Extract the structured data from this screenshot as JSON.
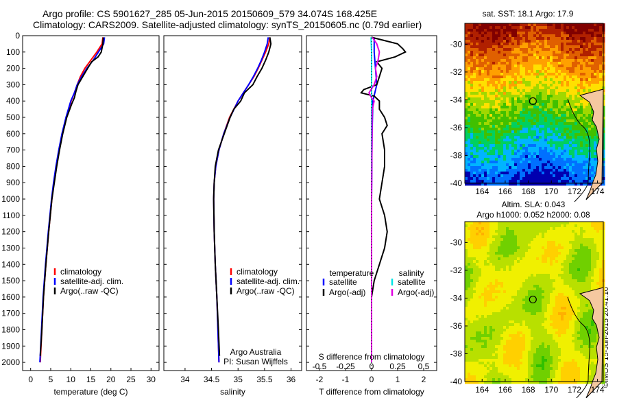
{
  "header": {
    "line1": "Argo profile: CS 5901627_285 05-Jun-2015 20150609_579 34.074S 168.425E",
    "line2": "Climatology: CARS2009. Satellite-adjusted climatology: synTS_20150605.nc (0.79d earlier)"
  },
  "credit": "©IMOS 15-Jun-2015 20:41:10",
  "chart_data": [
    {
      "id": "temperature",
      "type": "line",
      "xlabel": "temperature (deg C)",
      "ylabel": "",
      "xlim": [
        -2,
        32
      ],
      "xticks": [
        0,
        5,
        10,
        15,
        20,
        25,
        30
      ],
      "ylim": [
        2050,
        0
      ],
      "yticks": [
        0,
        100,
        200,
        300,
        400,
        500,
        600,
        700,
        800,
        900,
        1000,
        1100,
        1200,
        1300,
        1400,
        1500,
        1600,
        1700,
        1800,
        1900,
        2000
      ],
      "legend": [
        "climatology",
        "satellite-adj. clim.",
        "Argo(..raw -QC)"
      ],
      "legend_colors": [
        "#ff0000",
        "#0000ff",
        "#000000"
      ],
      "series": [
        {
          "name": "climatology",
          "color": "#ff0000",
          "depth": [
            10,
            50,
            100,
            150,
            200,
            250,
            300,
            350,
            400,
            500,
            600,
            700,
            800,
            900,
            1000,
            1200,
            1400,
            1600,
            1800,
            2000
          ],
          "values": [
            18.0,
            17.8,
            16.5,
            15.0,
            13.5,
            12.4,
            11.6,
            10.9,
            10.1,
            8.9,
            7.9,
            7.1,
            6.4,
            5.8,
            5.3,
            4.5,
            3.8,
            3.2,
            2.8,
            2.4
          ]
        },
        {
          "name": "satellite-adj. clim.",
          "color": "#0000ff",
          "depth": [
            10,
            50,
            100,
            150,
            200,
            250,
            300,
            350,
            400,
            500,
            600,
            700,
            800,
            900,
            1000,
            1200,
            1400,
            1600,
            1800,
            2000
          ],
          "values": [
            18.4,
            18.2,
            16.9,
            15.6,
            14.0,
            12.7,
            11.6,
            10.9,
            10.0,
            8.8,
            7.8,
            7.0,
            6.3,
            5.7,
            5.2,
            4.4,
            3.7,
            3.1,
            2.7,
            2.3
          ]
        },
        {
          "name": "Argo(..raw -QC)",
          "color": "#000000",
          "depth": [
            10,
            50,
            100,
            130,
            160,
            200,
            250,
            300,
            340,
            380,
            420,
            500,
            600,
            700,
            800,
            900,
            1000,
            1200,
            1400,
            1600,
            1800,
            1960
          ],
          "values": [
            18.1,
            18.0,
            17.6,
            16.8,
            15.2,
            14.2,
            13.0,
            11.8,
            11.3,
            10.9,
            10.2,
            9.0,
            8.0,
            7.2,
            6.5,
            5.9,
            5.3,
            4.5,
            3.8,
            3.2,
            2.8,
            2.4
          ]
        }
      ]
    },
    {
      "id": "salinity",
      "type": "line",
      "xlabel": "salinity",
      "ylabel": "",
      "xlim": [
        33.6,
        36.2
      ],
      "xticks": [
        34,
        34.5,
        35,
        35.5,
        36
      ],
      "ylim": [
        2050,
        0
      ],
      "legend": [
        "climatology",
        "satellite-adj. clim.",
        "Argo(..raw -QC)"
      ],
      "legend_colors": [
        "#ff0000",
        "#0000ff",
        "#000000"
      ],
      "annotation": [
        "Argo Australia",
        "PI: Susan Wijffels"
      ],
      "series": [
        {
          "name": "climatology",
          "color": "#ff0000",
          "depth": [
            10,
            50,
            100,
            150,
            200,
            250,
            300,
            350,
            400,
            500,
            600,
            700,
            800,
            900,
            1000,
            1200,
            1400,
            1600,
            1800,
            2000
          ],
          "values": [
            35.6,
            35.58,
            35.52,
            35.45,
            35.38,
            35.3,
            35.2,
            35.1,
            35.0,
            34.84,
            34.73,
            34.64,
            34.58,
            34.55,
            34.54,
            34.55,
            34.57,
            34.6,
            34.62,
            34.64
          ]
        },
        {
          "name": "satellite-adj. clim.",
          "color": "#0000ff",
          "depth": [
            10,
            50,
            100,
            150,
            200,
            250,
            300,
            350,
            400,
            500,
            600,
            700,
            800,
            900,
            1000,
            1200,
            1400,
            1600,
            1800,
            2000
          ],
          "values": [
            35.57,
            35.55,
            35.5,
            35.44,
            35.37,
            35.29,
            35.2,
            35.1,
            35.0,
            34.85,
            34.73,
            34.64,
            34.58,
            34.55,
            34.54,
            34.55,
            34.57,
            34.6,
            34.62,
            34.64
          ]
        },
        {
          "name": "Argo(..raw -QC)",
          "color": "#000000",
          "depth": [
            10,
            50,
            100,
            150,
            200,
            250,
            300,
            350,
            400,
            450,
            500,
            600,
            700,
            800,
            900,
            1000,
            1200,
            1400,
            1600,
            1800,
            1960
          ],
          "values": [
            35.6,
            35.62,
            35.58,
            35.52,
            35.45,
            35.36,
            35.28,
            35.12,
            35.05,
            34.92,
            34.85,
            34.74,
            34.63,
            34.57,
            34.55,
            34.54,
            34.55,
            34.57,
            34.6,
            34.63,
            34.65
          ]
        }
      ]
    },
    {
      "id": "difference",
      "type": "line",
      "xlabel": "T difference from climatology",
      "toplabel": "S difference from climatology",
      "xlim": [
        -2.5,
        2.5
      ],
      "xticks": [
        -2,
        -1,
        0,
        1,
        2
      ],
      "s_ticks": [
        "-0.5",
        "-0.25",
        "0",
        "0.25",
        "0.5"
      ],
      "ylim": [
        2050,
        0
      ],
      "legend_titles": [
        "temperature",
        "salinity"
      ],
      "legend": [
        "satellite",
        "Argo(-adj)",
        "satellite",
        "Argo(-adj)"
      ],
      "legend_colors": [
        "#0000ff",
        "#000000",
        "#00e5e5",
        "#e000e0"
      ],
      "series": [
        {
          "name": "satellite",
          "color": "#0000ff",
          "depth": [
            10,
            100,
            200,
            300,
            400,
            600,
            1000,
            1500,
            2000
          ],
          "values": [
            0.1,
            0.1,
            0.15,
            0.2,
            0.05,
            0.02,
            0.0,
            0.0,
            0.0
          ]
        },
        {
          "name": "Argo(-adj)",
          "color": "#000000",
          "depth": [
            10,
            30,
            50,
            80,
            100,
            130,
            160,
            200,
            250,
            300,
            330,
            350,
            370,
            400,
            450,
            500,
            550,
            600,
            700,
            800,
            900,
            1000,
            1100,
            1200,
            1300,
            1400,
            1500,
            1600,
            1700,
            1800,
            1900,
            1960
          ],
          "values": [
            0.0,
            0.5,
            1.0,
            1.2,
            1.3,
            0.9,
            0.2,
            0.4,
            0.3,
            0.2,
            -0.3,
            -0.4,
            0.1,
            0.3,
            0.3,
            0.5,
            0.6,
            0.4,
            0.5,
            0.5,
            0.4,
            0.3,
            0.5,
            0.6,
            0.5,
            0.3,
            0.1,
            0.0,
            0.0,
            0.0,
            0.0,
            0.0
          ]
        },
        {
          "name": "satellite (salinity)",
          "color": "#00e5e5",
          "depth": [
            10,
            100,
            200,
            300,
            400,
            600,
            1000,
            1500,
            2000
          ],
          "values": [
            -0.02,
            0.0,
            0.0,
            0.0,
            0.0,
            0.0,
            0.0,
            0.0,
            0.0
          ]
        },
        {
          "name": "Argo(-adj) (salinity)",
          "color": "#e000e0",
          "depth": [
            10,
            50,
            100,
            150,
            200,
            250,
            300,
            350,
            380,
            400,
            450,
            500,
            600,
            800,
            1000,
            1200,
            1500,
            1800,
            2000
          ],
          "values": [
            0.03,
            0.2,
            0.3,
            0.25,
            0.15,
            0.2,
            0.1,
            -0.1,
            0.0,
            0.1,
            0.03,
            0.02,
            0.02,
            0.01,
            0.0,
            0.0,
            0.0,
            0.0,
            0.0
          ]
        }
      ]
    },
    {
      "id": "sst_map",
      "type": "heatmap",
      "title": "sat. SST: 18.1  Argo: 17.9",
      "xlim": [
        162.5,
        174.5
      ],
      "ylim": [
        -40,
        -28.5
      ],
      "xticks": [
        "164",
        "166",
        "168",
        "170",
        "172",
        "174"
      ],
      "yticks": [
        "-30",
        "-32",
        "-34",
        "-36",
        "-38",
        "-40"
      ],
      "ytick_values": [
        -30,
        -32,
        -34,
        -36,
        -38,
        -40
      ],
      "xtick_values": [
        164,
        166,
        168,
        170,
        172,
        174
      ],
      "argo_position": [
        168.4,
        -34.1
      ],
      "colors": [
        "#0000b0",
        "#0070ff",
        "#00b4ff",
        "#00d060",
        "#40c000",
        "#a0d800",
        "#ffe000",
        "#ffa000",
        "#e06000",
        "#b02000",
        "#800000"
      ]
    },
    {
      "id": "sla_map",
      "type": "heatmap",
      "title": [
        "Altim. SLA: 0.043",
        "Argo h1000: 0.052 h2000: 0.08"
      ],
      "xlim": [
        162.5,
        174.5
      ],
      "ylim": [
        -40,
        -28.5
      ],
      "xticks": [
        "164",
        "166",
        "168",
        "170",
        "172",
        "174"
      ],
      "yticks": [
        "-30",
        "-32",
        "-34",
        "-36",
        "-38",
        "-40"
      ],
      "ytick_values": [
        -30,
        -32,
        -34,
        -36,
        -38,
        -40
      ],
      "xtick_values": [
        164,
        166,
        168,
        170,
        172,
        174
      ],
      "argo_position": [
        168.4,
        -34.1
      ],
      "colors": [
        "#30c000",
        "#70d000",
        "#b8e000",
        "#f0f000",
        "#ffd000",
        "#ffb000"
      ]
    }
  ]
}
